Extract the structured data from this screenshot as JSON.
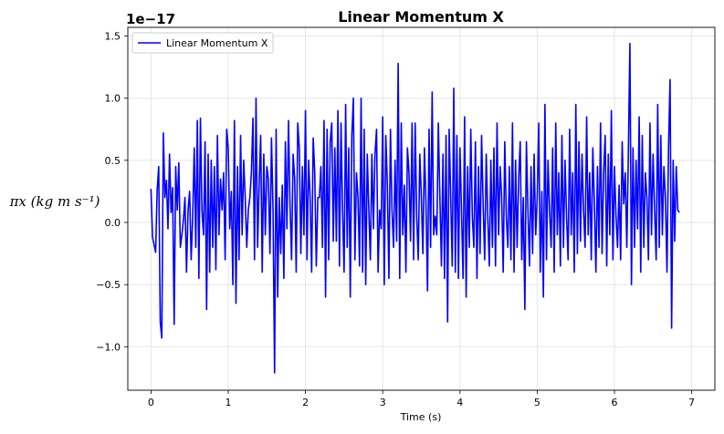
{
  "chart_data": {
    "type": "line",
    "title": "Linear Momentum X",
    "xlabel": "Time (s)",
    "ylabel": "πx (kg m s⁻¹)",
    "y_offset_text": "1e−17",
    "xlim": [
      -0.3,
      7.3
    ],
    "ylim": [
      -1.35,
      1.57
    ],
    "x_ticks": [
      0,
      1,
      2,
      3,
      4,
      5,
      6,
      7
    ],
    "x_tick_labels": [
      "0",
      "1",
      "2",
      "3",
      "4",
      "5",
      "6",
      "7"
    ],
    "y_ticks": [
      -1.0,
      -0.5,
      0.0,
      0.5,
      1.0,
      1.5
    ],
    "y_tick_labels": [
      "−1.0",
      "−0.5",
      "0.0",
      "0.5",
      "1.0",
      "1.5"
    ],
    "grid": true,
    "legend_position": "top-left",
    "series": [
      {
        "name": "Linear Momentum X",
        "color": "#0000ff",
        "x_start": 0.0,
        "x_step": 0.02,
        "values": [
          0.27,
          -0.12,
          -0.18,
          -0.24,
          0.26,
          0.45,
          -0.8,
          -0.93,
          0.72,
          0.2,
          0.34,
          -0.05,
          0.55,
          0.08,
          0.28,
          -0.82,
          0.45,
          0.1,
          0.48,
          -0.2,
          -0.1,
          0.02,
          0.2,
          -0.4,
          0.1,
          0.25,
          -0.3,
          0.05,
          0.6,
          -0.2,
          0.82,
          -0.45,
          0.84,
          0.1,
          -0.1,
          0.65,
          -0.7,
          0.55,
          -0.4,
          0.5,
          -0.2,
          0.45,
          -0.38,
          0.7,
          -0.1,
          0.35,
          0.1,
          0.4,
          -0.3,
          0.75,
          0.6,
          -0.05,
          0.25,
          -0.5,
          0.82,
          -0.65,
          0.45,
          -0.3,
          0.7,
          -0.1,
          0.5,
          0.2,
          -0.2,
          0.1,
          0.2,
          0.4,
          0.84,
          -0.3,
          1.0,
          -0.2,
          0.3,
          0.7,
          -0.4,
          0.55,
          -0.1,
          0.45,
          0.35,
          -0.25,
          0.68,
          0.1,
          -1.21,
          0.75,
          -0.6,
          0.2,
          -0.25,
          0.3,
          -0.45,
          0.65,
          -0.05,
          0.82,
          0.15,
          -0.3,
          0.55,
          0.35,
          -0.4,
          0.8,
          0.6,
          -0.25,
          0.45,
          -0.1,
          0.9,
          -0.3,
          0.5,
          0.2,
          -0.4,
          0.68,
          0.4,
          -0.35,
          0.2,
          0.2,
          0.45,
          -0.2,
          0.82,
          -0.6,
          0.75,
          -0.3,
          0.65,
          0.8,
          -0.15,
          0.6,
          -0.15,
          0.9,
          -0.35,
          0.8,
          0.1,
          -0.4,
          0.95,
          -0.2,
          0.6,
          -0.6,
          0.7,
          1.0,
          -0.3,
          0.4,
          0.2,
          -0.35,
          1.0,
          -0.4,
          0.75,
          -0.5,
          0.55,
          0.1,
          -0.3,
          0.55,
          -0.05,
          0.55,
          0.75,
          -0.4,
          0.1,
          -0.05,
          0.85,
          -0.5,
          0.7,
          0.3,
          -0.45,
          0.75,
          0.1,
          -0.2,
          0.5,
          -0.15,
          1.28,
          -0.45,
          0.8,
          -0.1,
          0.3,
          -0.4,
          0.6,
          0.4,
          -0.15,
          0.8,
          -0.3,
          0.8,
          0.05,
          -0.3,
          0.55,
          0.2,
          -0.25,
          0.6,
          0.15,
          -0.55,
          0.75,
          -0.2,
          1.05,
          -0.1,
          0.05,
          -0.1,
          0.8,
          0.2,
          -0.35,
          0.55,
          -0.45,
          0.7,
          -0.8,
          0.75,
          0.2,
          -0.35,
          1.08,
          -0.4,
          0.7,
          -0.45,
          0.6,
          0.1,
          -0.45,
          0.85,
          -0.6,
          0.45,
          -0.2,
          0.75,
          0.05,
          -0.2,
          0.65,
          -0.45,
          0.45,
          -0.25,
          0.7,
          0.15,
          -0.3,
          0.55,
          0.05,
          -0.35,
          0.5,
          -0.2,
          0.6,
          -0.35,
          0.8,
          -0.1,
          0.45,
          0.2,
          -0.4,
          0.65,
          0.05,
          -0.2,
          0.45,
          -0.3,
          0.8,
          -0.4,
          0.5,
          -0.2,
          0.35,
          0.65,
          -0.3,
          0.2,
          -0.7,
          0.65,
          0.1,
          -0.35,
          0.45,
          -0.25,
          0.55,
          -0.1,
          0.2,
          0.8,
          -0.4,
          0.25,
          -0.6,
          0.95,
          -0.3,
          0.5,
          0.1,
          -0.2,
          0.6,
          -0.4,
          0.8,
          -0.1,
          0.4,
          -0.35,
          0.7,
          -0.2,
          0.5,
          0.05,
          -0.3,
          0.75,
          -0.1,
          0.4,
          -0.4,
          0.95,
          -0.25,
          0.65,
          -0.15,
          0.55,
          0.1,
          -0.2,
          0.85,
          -0.1,
          0.4,
          -0.3,
          0.6,
          0.15,
          -0.4,
          0.45,
          -0.2,
          0.8,
          -0.25,
          0.4,
          0.7,
          -0.35,
          0.55,
          -0.1,
          0.9,
          -0.3,
          0.45,
          0.05,
          -0.2,
          0.3,
          -0.3,
          0.65,
          0.15,
          0.4,
          -0.2,
          0.55,
          1.44,
          -0.5,
          0.6,
          -0.2,
          0.5,
          -0.05,
          0.85,
          -0.4,
          0.7,
          -0.2,
          0.4,
          0.2,
          -0.3,
          0.8,
          -0.1,
          0.55,
          0.1,
          -0.3,
          0.95,
          -0.2,
          0.7,
          -0.1,
          0.45,
          0.2,
          -0.4,
          0.6,
          1.15,
          -0.85,
          0.5,
          -0.15,
          0.45,
          0.1,
          0.08
        ]
      }
    ]
  }
}
